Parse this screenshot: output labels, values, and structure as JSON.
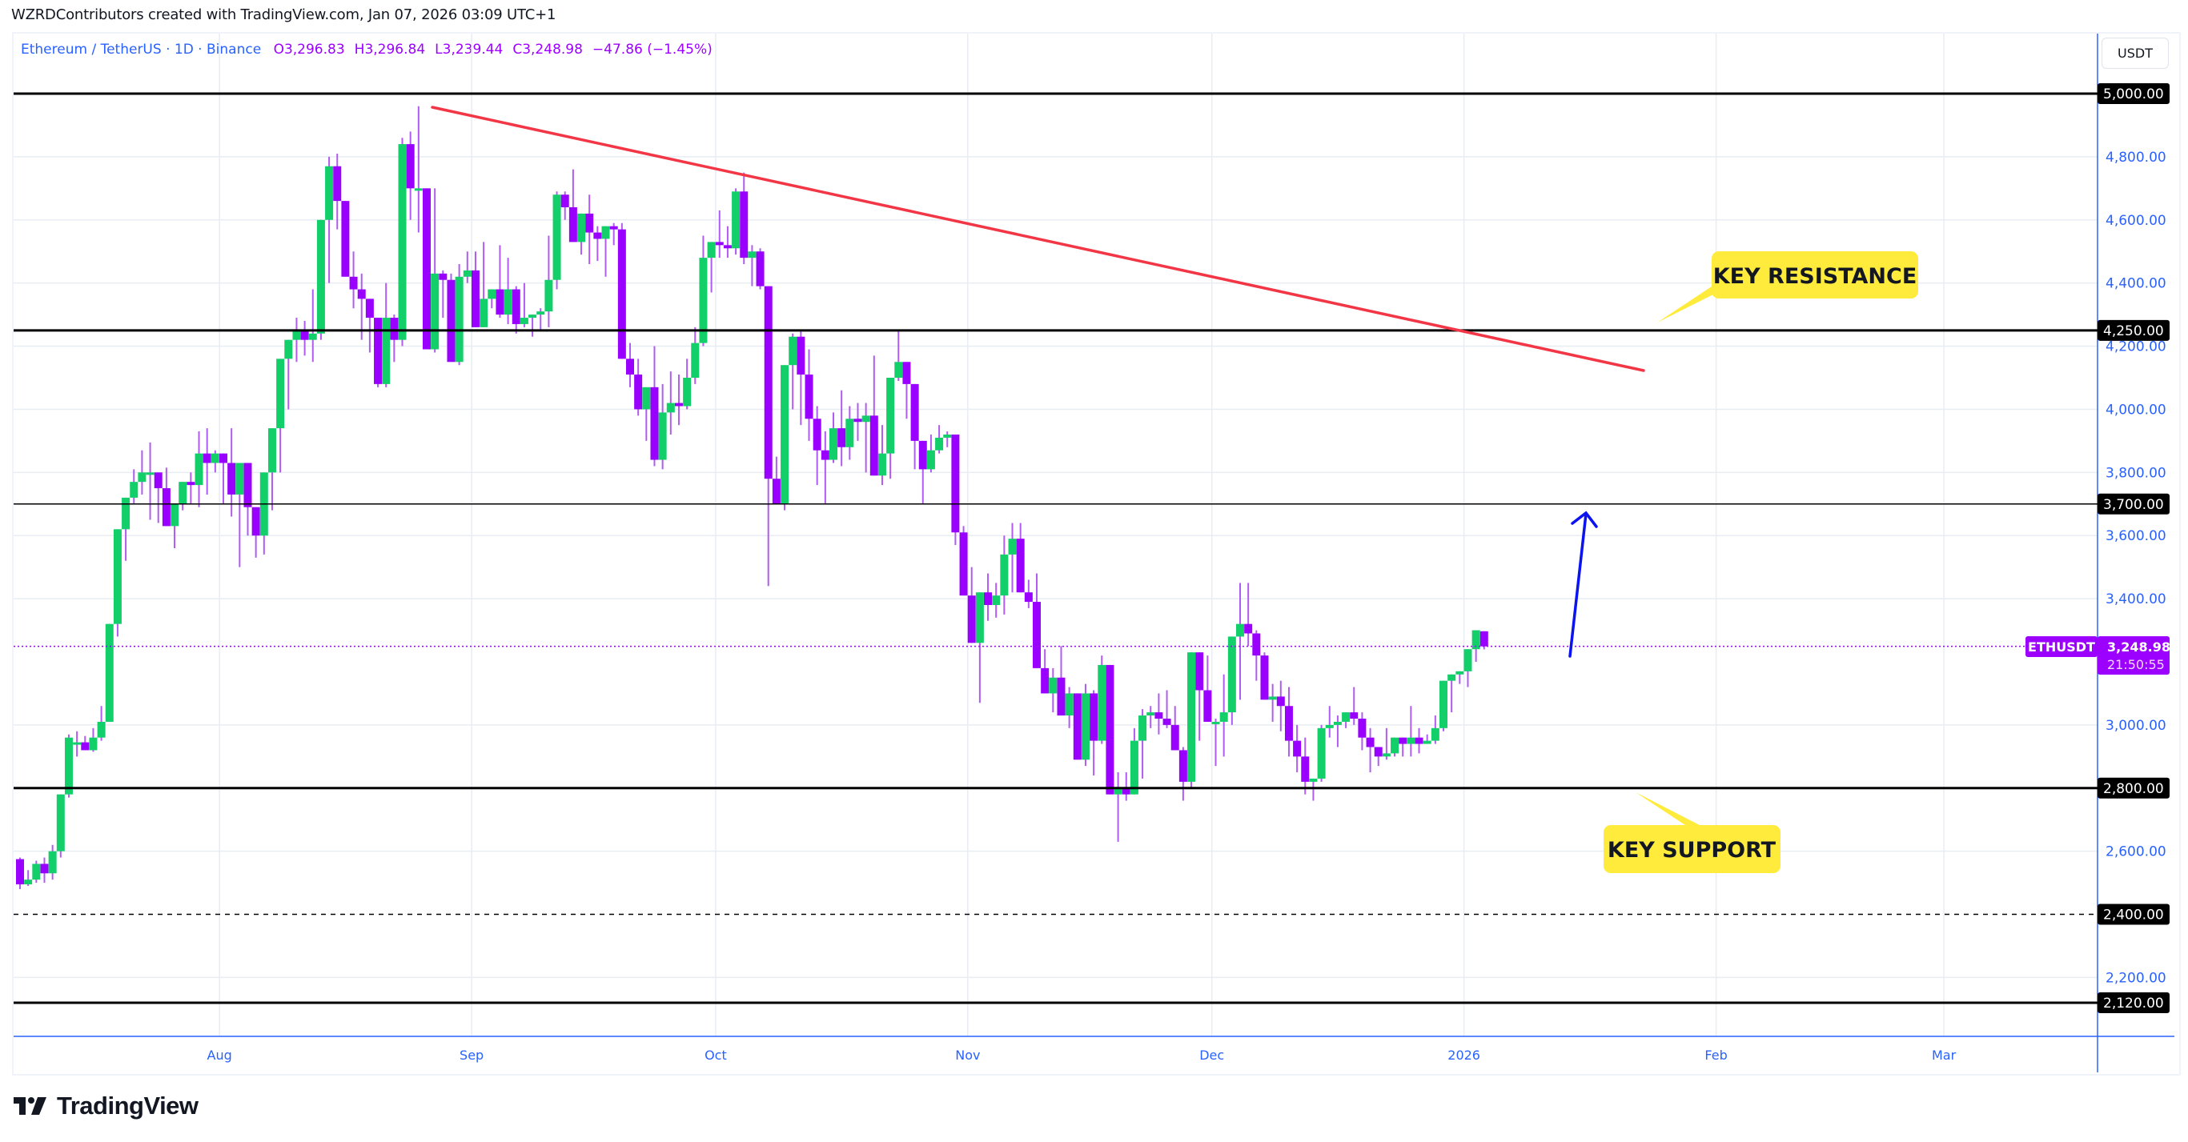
{
  "credit": "WZRDContributors created with TradingView.com, Jan 07, 2026 03:09 UTC+1",
  "legend": {
    "symbol": "Ethereum / TetherUS · 1D · Binance",
    "open": "O3,296.83",
    "high": "H3,296.84",
    "low": "L3,239.44",
    "close": "C3,248.98",
    "change": "−47.86 (−1.45%)"
  },
  "currency_label": "USDT",
  "last_price": {
    "symbol": "ETHUSDT",
    "price": "3,248.98",
    "countdown": "21:50:55"
  },
  "annotations": {
    "resistance": "KEY RESISTANCE",
    "support": "KEY SUPPORT"
  },
  "logo_text": "TradingView",
  "colors": {
    "up": "#13cf6a",
    "down": "#9900ff",
    "wick": "#b05cf0",
    "trend": "#f23645",
    "arrow": "#0b13f0",
    "callout": "#ffeb3b",
    "axis_text": "#2962ff",
    "last_price_bg": "#9c00ff"
  },
  "chart_data": {
    "type": "candlestick",
    "title": "Ethereum / TetherUS · 1D · Binance",
    "xlabel": "",
    "ylabel": "USDT",
    "ylim": [
      2030,
      5200
    ],
    "x_ticks": [
      "Aug",
      "Sep",
      "Oct",
      "Nov",
      "Dec",
      "2026",
      "Feb",
      "Mar"
    ],
    "y_ticks": [
      "4,800.00",
      "4,600.00",
      "4,400.00",
      "4,200.00",
      "4,000.00",
      "3,800.00",
      "3,600.00",
      "3,400.00",
      "3,000.00",
      "2,600.00",
      "2,200.00"
    ],
    "horizontal_levels": [
      {
        "price": 5000,
        "label": "5,000.00",
        "style": "solid",
        "width": 3
      },
      {
        "price": 4250,
        "label": "4,250.00",
        "style": "solid",
        "width": 3
      },
      {
        "price": 3700,
        "label": "3,700.00",
        "style": "solid",
        "width": 1.5
      },
      {
        "price": 2800,
        "label": "2,800.00",
        "style": "solid",
        "width": 3
      },
      {
        "price": 2400,
        "label": "2,400.00",
        "style": "dashed",
        "width": 1.5
      },
      {
        "price": 2120,
        "label": "2,120.00",
        "style": "solid",
        "width": 3
      }
    ],
    "trendline": {
      "from": {
        "date": "2025-08-24",
        "price": 4956
      },
      "to": {
        "date": "2026-01-19",
        "price": 4122
      }
    },
    "arrow": {
      "from": {
        "date": "2026-01-08",
        "price": 3228
      },
      "to": {
        "date": "2026-01-10",
        "price": 3660
      }
    },
    "last_close": 3248.98,
    "start_date": "2025-07-06",
    "candles_ohlc": [
      [
        2575,
        2580,
        2480,
        2495
      ],
      [
        2495,
        2540,
        2490,
        2510
      ],
      [
        2510,
        2570,
        2500,
        2560
      ],
      [
        2560,
        2580,
        2500,
        2530
      ],
      [
        2530,
        2620,
        2510,
        2600
      ],
      [
        2600,
        2780,
        2580,
        2780
      ],
      [
        2780,
        2970,
        2770,
        2960
      ],
      [
        2945,
        2980,
        2900,
        2945
      ],
      [
        2945,
        2965,
        2920,
        2920
      ],
      [
        2920,
        2990,
        2915,
        2960
      ],
      [
        2960,
        3060,
        2950,
        3010
      ],
      [
        3010,
        3320,
        3030,
        3320
      ],
      [
        3320,
        3460,
        3280,
        3620
      ],
      [
        3620,
        3720,
        3520,
        3720
      ],
      [
        3720,
        3810,
        3700,
        3770
      ],
      [
        3770,
        3870,
        3730,
        3800
      ],
      [
        3800,
        3895,
        3650,
        3800
      ],
      [
        3800,
        3800,
        3640,
        3750
      ],
      [
        3750,
        3815,
        3680,
        3630
      ],
      [
        3630,
        3690,
        3560,
        3700
      ],
      [
        3700,
        3750,
        3680,
        3770
      ],
      [
        3770,
        3800,
        3700,
        3760
      ],
      [
        3760,
        3930,
        3690,
        3860
      ],
      [
        3860,
        3940,
        3730,
        3830
      ],
      [
        3830,
        3870,
        3800,
        3860
      ],
      [
        3860,
        3840,
        3700,
        3830
      ],
      [
        3830,
        3940,
        3660,
        3730
      ],
      [
        3730,
        3750,
        3500,
        3830
      ],
      [
        3830,
        3760,
        3600,
        3690
      ],
      [
        3690,
        3680,
        3530,
        3600
      ],
      [
        3600,
        3700,
        3540,
        3800
      ],
      [
        3800,
        3850,
        3680,
        3940
      ],
      [
        3940,
        4000,
        3800,
        4160
      ],
      [
        4160,
        4220,
        4000,
        4220
      ],
      [
        4220,
        4290,
        4150,
        4250
      ],
      [
        4250,
        4280,
        4170,
        4220
      ],
      [
        4220,
        4380,
        4150,
        4240
      ],
      [
        4240,
        4490,
        4220,
        4600
      ],
      [
        4600,
        4800,
        4400,
        4770
      ],
      [
        4770,
        4810,
        4570,
        4660
      ],
      [
        4660,
        4650,
        4480,
        4420
      ],
      [
        4420,
        4500,
        4320,
        4380
      ],
      [
        4380,
        4430,
        4220,
        4350
      ],
      [
        4350,
        4300,
        4180,
        4290
      ],
      [
        4290,
        4250,
        4070,
        4080
      ],
      [
        4080,
        4400,
        4070,
        4290
      ],
      [
        4290,
        4300,
        4150,
        4220
      ],
      [
        4220,
        4860,
        4200,
        4840
      ],
      [
        4840,
        4880,
        4600,
        4700
      ],
      [
        4700,
        4960,
        4560,
        4700
      ],
      [
        4700,
        4690,
        4430,
        4190
      ],
      [
        4190,
        4700,
        4180,
        4430
      ],
      [
        4430,
        4440,
        4290,
        4410
      ],
      [
        4410,
        4430,
        4250,
        4150
      ],
      [
        4150,
        4460,
        4140,
        4420
      ],
      [
        4420,
        4500,
        4400,
        4440
      ],
      [
        4440,
        4500,
        4260,
        4260
      ],
      [
        4260,
        4530,
        4280,
        4350
      ],
      [
        4350,
        4380,
        4320,
        4380
      ],
      [
        4380,
        4520,
        4290,
        4300
      ],
      [
        4300,
        4480,
        4270,
        4380
      ],
      [
        4380,
        4390,
        4240,
        4270
      ],
      [
        4270,
        4400,
        4260,
        4290
      ],
      [
        4290,
        4300,
        4230,
        4300
      ],
      [
        4300,
        4320,
        4250,
        4310
      ],
      [
        4310,
        4550,
        4260,
        4410
      ],
      [
        4410,
        4690,
        4380,
        4680
      ],
      [
        4680,
        4690,
        4600,
        4640
      ],
      [
        4640,
        4760,
        4570,
        4530
      ],
      [
        4530,
        4580,
        4490,
        4620
      ],
      [
        4620,
        4680,
        4460,
        4560
      ],
      [
        4560,
        4580,
        4470,
        4540
      ],
      [
        4540,
        4560,
        4420,
        4580
      ],
      [
        4580,
        4590,
        4520,
        4570
      ],
      [
        4570,
        4590,
        4230,
        4160
      ],
      [
        4160,
        4210,
        4070,
        4110
      ],
      [
        4110,
        4160,
        3980,
        4000
      ],
      [
        4000,
        4050,
        3900,
        4070
      ],
      [
        4070,
        4200,
        3820,
        3840
      ],
      [
        3840,
        4080,
        3810,
        3990
      ],
      [
        3990,
        4120,
        3920,
        4020
      ],
      [
        4020,
        4110,
        3950,
        4010
      ],
      [
        4010,
        4160,
        4000,
        4100
      ],
      [
        4100,
        4260,
        4080,
        4210
      ],
      [
        4210,
        4550,
        4200,
        4480
      ],
      [
        4480,
        4510,
        4370,
        4530
      ],
      [
        4530,
        4630,
        4480,
        4520
      ],
      [
        4520,
        4580,
        4480,
        4510
      ],
      [
        4510,
        4700,
        4490,
        4690
      ],
      [
        4690,
        4750,
        4460,
        4480
      ],
      [
        4480,
        4520,
        4390,
        4500
      ],
      [
        4500,
        4510,
        4380,
        4390
      ],
      [
        4390,
        4390,
        3440,
        3780
      ],
      [
        3780,
        3850,
        3700,
        3700
      ],
      [
        3700,
        4000,
        3680,
        4140
      ],
      [
        4140,
        4240,
        4000,
        4230
      ],
      [
        4230,
        4250,
        3950,
        4110
      ],
      [
        4110,
        4190,
        3900,
        3970
      ],
      [
        3970,
        4010,
        3760,
        3870
      ],
      [
        3870,
        3930,
        3700,
        3840
      ],
      [
        3840,
        3990,
        3830,
        3940
      ],
      [
        3940,
        4060,
        3820,
        3880
      ],
      [
        3880,
        4010,
        3840,
        3970
      ],
      [
        3970,
        4020,
        3900,
        3960
      ],
      [
        3960,
        4020,
        3800,
        3980
      ],
      [
        3980,
        4170,
        3850,
        3790
      ],
      [
        3790,
        3950,
        3760,
        3860
      ],
      [
        3860,
        3870,
        3780,
        4100
      ],
      [
        4100,
        4250,
        4090,
        4150
      ],
      [
        4150,
        4140,
        3970,
        4080
      ],
      [
        4080,
        4030,
        3810,
        3900
      ],
      [
        3900,
        3880,
        3700,
        3810
      ],
      [
        3810,
        3920,
        3800,
        3870
      ],
      [
        3870,
        3950,
        3860,
        3910
      ],
      [
        3910,
        3930,
        3880,
        3920
      ],
      [
        3920,
        3920,
        3570,
        3610
      ],
      [
        3610,
        3630,
        3460,
        3410
      ],
      [
        3410,
        3500,
        3280,
        3260
      ],
      [
        3260,
        3360,
        3070,
        3420
      ],
      [
        3420,
        3480,
        3330,
        3380
      ],
      [
        3380,
        3450,
        3340,
        3410
      ],
      [
        3410,
        3600,
        3350,
        3540
      ],
      [
        3540,
        3640,
        3420,
        3590
      ],
      [
        3590,
        3640,
        3420,
        3420
      ],
      [
        3420,
        3460,
        3370,
        3390
      ],
      [
        3390,
        3480,
        3200,
        3180
      ],
      [
        3180,
        3240,
        3130,
        3100
      ],
      [
        3100,
        3180,
        3040,
        3150
      ],
      [
        3150,
        3250,
        3050,
        3030
      ],
      [
        3030,
        3120,
        2990,
        3100
      ],
      [
        3100,
        3070,
        2890,
        2890
      ],
      [
        2890,
        3130,
        2870,
        3100
      ],
      [
        3100,
        3110,
        2840,
        2950
      ],
      [
        2950,
        3220,
        2940,
        3190
      ],
      [
        3190,
        3020,
        2780,
        2780
      ],
      [
        2780,
        2850,
        2630,
        2800
      ],
      [
        2800,
        2850,
        2760,
        2780
      ],
      [
        2780,
        2990,
        2790,
        2950
      ],
      [
        2950,
        3050,
        2830,
        3030
      ],
      [
        3030,
        3060,
        2990,
        3040
      ],
      [
        3040,
        3100,
        2970,
        3020
      ],
      [
        3020,
        3110,
        2990,
        3000
      ],
      [
        3000,
        3060,
        2950,
        2920
      ],
      [
        2920,
        2930,
        2760,
        2820
      ],
      [
        2820,
        3090,
        2800,
        3230
      ],
      [
        3230,
        3210,
        2950,
        3110
      ],
      [
        3110,
        3220,
        3080,
        3010
      ],
      [
        3010,
        3020,
        2870,
        3010
      ],
      [
        3010,
        3160,
        2900,
        3040
      ],
      [
        3040,
        3180,
        3000,
        3280
      ],
      [
        3280,
        3450,
        3080,
        3320
      ],
      [
        3320,
        3450,
        3250,
        3290
      ],
      [
        3290,
        3300,
        3140,
        3220
      ],
      [
        3220,
        3230,
        3110,
        3080
      ],
      [
        3080,
        3130,
        3010,
        3090
      ],
      [
        3090,
        3140,
        2980,
        3060
      ],
      [
        3060,
        3120,
        2900,
        2950
      ],
      [
        2950,
        3000,
        2850,
        2900
      ],
      [
        2900,
        2960,
        2780,
        2820
      ],
      [
        2820,
        2830,
        2760,
        2830
      ],
      [
        2830,
        3000,
        2820,
        2990
      ],
      [
        2990,
        3060,
        2960,
        3000
      ],
      [
        3000,
        3030,
        2930,
        3010
      ],
      [
        3010,
        3020,
        2990,
        3040
      ],
      [
        3040,
        3120,
        3000,
        3020
      ],
      [
        3020,
        3040,
        2920,
        2960
      ],
      [
        2960,
        2990,
        2850,
        2930
      ],
      [
        2930,
        2900,
        2870,
        2900
      ],
      [
        2900,
        2990,
        2890,
        2910
      ],
      [
        2910,
        2960,
        2900,
        2960
      ],
      [
        2960,
        2920,
        2900,
        2940
      ],
      [
        2940,
        3060,
        2900,
        2960
      ],
      [
        2960,
        2990,
        2910,
        2940
      ],
      [
        2940,
        2970,
        2940,
        2950
      ],
      [
        2950,
        3030,
        2940,
        2990
      ],
      [
        2990,
        3130,
        2980,
        3140
      ],
      [
        3140,
        3150,
        3040,
        3160
      ],
      [
        3160,
        3170,
        3130,
        3170
      ],
      [
        3170,
        3240,
        3120,
        3240
      ],
      [
        3240,
        3290,
        3200,
        3300
      ],
      [
        3296.83,
        3296.84,
        3239.44,
        3248.98
      ]
    ]
  }
}
